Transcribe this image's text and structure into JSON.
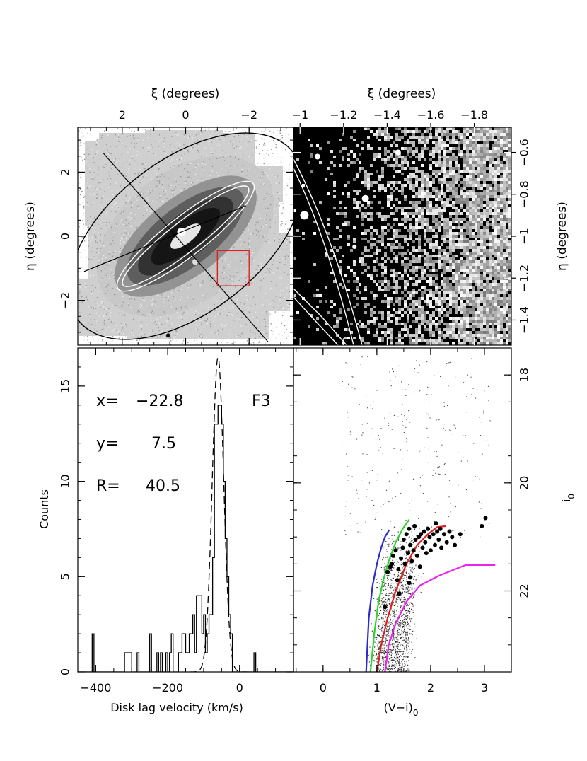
{
  "chart_data": [
    {
      "panel": "sky-map",
      "type": "heatmap",
      "title": "",
      "top_xlabel": "ξ (degrees)",
      "ylabel": "η (degrees)",
      "xlim": [
        3.4,
        -3.4
      ],
      "ylim": [
        -3.4,
        3.4
      ],
      "xticks": [
        2,
        0,
        -2
      ],
      "yticks": [
        2,
        0,
        -2
      ],
      "ellipses": [
        {
          "name": "outer-disk-ellipse",
          "cx": 0,
          "cy": 0,
          "a": 4.3,
          "b": 2.4,
          "angle_deg": -38,
          "color": "#000000"
        },
        {
          "name": "inner-disk-ellipse-outer",
          "cx": 0,
          "cy": 0,
          "a": 2.7,
          "b": 0.62,
          "angle_deg": -38,
          "color": "#ffffff"
        },
        {
          "name": "inner-disk-ellipse-inner",
          "cx": 0,
          "cy": 0,
          "a": 2.5,
          "b": 0.48,
          "angle_deg": -38,
          "color": "#ffffff"
        }
      ],
      "axis_lines": [
        {
          "name": "major-axis-line",
          "x1": 2.6,
          "y1": 2.6,
          "x2": -2.6,
          "y2": -3.3
        },
        {
          "name": "minor-axis-line",
          "x1": 3.2,
          "y1": -1.1,
          "x2": -1.9,
          "y2": 0.95
        }
      ],
      "field_box": {
        "name": "field-f3-box",
        "xmin": -2.0,
        "xmax": -1.0,
        "ymin": -1.55,
        "ymax": -0.45,
        "color": "#e02020"
      }
    },
    {
      "panel": "field-zoom",
      "type": "heatmap",
      "top_xlabel": "ξ (degrees)",
      "right_ylabel": "η (degrees)",
      "xlim": [
        -0.97,
        -1.97
      ],
      "ylim": [
        -1.52,
        -0.48
      ],
      "xticks": [
        -1,
        -1.2,
        -1.4,
        -1.6,
        -1.8
      ],
      "yticks": [
        -0.6,
        -0.8,
        -1,
        -1.2,
        -1.4
      ]
    },
    {
      "panel": "velocity-histogram",
      "type": "bar",
      "xlabel": "Disk lag velocity (km/s)",
      "ylabel": "Counts",
      "xlim": [
        -450,
        150
      ],
      "ylim": [
        0,
        17
      ],
      "xticks": [
        -400,
        -200,
        0
      ],
      "yticks": [
        0,
        5,
        10,
        15
      ],
      "bin_width": 5,
      "bins": [
        [
          -410,
          2
        ],
        [
          -405,
          0
        ],
        [
          -320,
          1
        ],
        [
          -300,
          0
        ],
        [
          -285,
          1
        ],
        [
          -280,
          0
        ],
        [
          -250,
          2
        ],
        [
          -245,
          0
        ],
        [
          -230,
          1
        ],
        [
          -225,
          0
        ],
        [
          -220,
          1
        ],
        [
          -215,
          0
        ],
        [
          -205,
          1
        ],
        [
          -200,
          0
        ],
        [
          -195,
          1
        ],
        [
          -190,
          2
        ],
        [
          -185,
          0
        ],
        [
          -170,
          1
        ],
        [
          -160,
          2
        ],
        [
          -150,
          1
        ],
        [
          -140,
          2
        ],
        [
          -130,
          3
        ],
        [
          -125,
          1
        ],
        [
          -120,
          4
        ],
        [
          -110,
          4
        ],
        [
          -105,
          2
        ],
        [
          -100,
          3
        ],
        [
          -95,
          1
        ],
        [
          -90,
          2
        ],
        [
          -85,
          3
        ],
        [
          -80,
          3
        ],
        [
          -75,
          6
        ],
        [
          -70,
          13
        ],
        [
          -65,
          13
        ],
        [
          -60,
          14
        ],
        [
          -55,
          14
        ],
        [
          -50,
          13
        ],
        [
          -45,
          10
        ],
        [
          -40,
          7
        ],
        [
          -35,
          5
        ],
        [
          -30,
          3
        ],
        [
          -25,
          2
        ],
        [
          -20,
          0
        ],
        [
          -15,
          0
        ],
        [
          -10,
          0
        ],
        [
          40,
          1
        ],
        [
          45,
          0
        ]
      ],
      "gaussian_fit": {
        "mean": -60,
        "sigma": 16,
        "amplitude": 16.5,
        "style": "dashed"
      },
      "annotations": {
        "x_label": "x=",
        "x_value": "−22.8",
        "y_label": "y=",
        "y_value": "7.5",
        "r_label": "R=",
        "r_value": "40.5",
        "field_label": "F3"
      }
    },
    {
      "panel": "cmd",
      "type": "scatter",
      "xlabel": "(V−i)",
      "xlabel_subscript": "0",
      "right_ylabel": "i",
      "right_ylabel_subscript": "0",
      "xlim": [
        -0.55,
        3.5
      ],
      "ylim": [
        23.5,
        17.5
      ],
      "xticks": [
        0,
        1,
        2,
        3
      ],
      "yticks": [
        18,
        20,
        22
      ],
      "isochrones": [
        {
          "name": "isochrone-blue",
          "color": "#2c2ccc",
          "points": [
            [
              0.8,
              23.5
            ],
            [
              0.85,
              22.5
            ],
            [
              0.92,
              21.9
            ],
            [
              1.0,
              21.5
            ],
            [
              1.08,
              21.2
            ],
            [
              1.15,
              21.0
            ],
            [
              1.23,
              20.87
            ]
          ]
        },
        {
          "name": "isochrone-green",
          "color": "#2fd42f",
          "points": [
            [
              0.88,
              23.5
            ],
            [
              0.95,
              22.8
            ],
            [
              1.03,
              22.2
            ],
            [
              1.12,
              21.8
            ],
            [
              1.22,
              21.45
            ],
            [
              1.35,
              21.1
            ],
            [
              1.48,
              20.85
            ],
            [
              1.6,
              20.68
            ]
          ]
        },
        {
          "name": "isochrone-red",
          "color": "#e02020",
          "points": [
            [
              1.0,
              23.5
            ],
            [
              1.08,
              23.0
            ],
            [
              1.2,
              22.5
            ],
            [
              1.35,
              22.0
            ],
            [
              1.55,
              21.5
            ],
            [
              1.75,
              21.15
            ],
            [
              1.95,
              20.95
            ],
            [
              2.12,
              20.82
            ],
            [
              2.28,
              20.8
            ]
          ]
        },
        {
          "name": "isochrone-magenta",
          "color": "#ee22ee",
          "points": [
            [
              1.15,
              23.5
            ],
            [
              1.22,
              23.0
            ],
            [
              1.35,
              22.6
            ],
            [
              1.55,
              22.2
            ],
            [
              1.8,
              21.9
            ],
            [
              2.15,
              21.72
            ],
            [
              2.65,
              21.52
            ],
            [
              3.2,
              21.52
            ]
          ]
        }
      ],
      "rgb_stars": [
        [
          1.15,
          22.3
        ],
        [
          1.2,
          21.65
        ],
        [
          1.25,
          21.55
        ],
        [
          1.28,
          21.5
        ],
        [
          1.3,
          21.35
        ],
        [
          1.35,
          21.25
        ],
        [
          1.38,
          21.8
        ],
        [
          1.4,
          21.6
        ],
        [
          1.45,
          21.4
        ],
        [
          1.48,
          21.2
        ],
        [
          1.5,
          21.05
        ],
        [
          1.52,
          21.5
        ],
        [
          1.55,
          20.95
        ],
        [
          1.58,
          21.3
        ],
        [
          1.6,
          20.85
        ],
        [
          1.62,
          21.15
        ],
        [
          1.65,
          21.45
        ],
        [
          1.68,
          21.25
        ],
        [
          1.7,
          20.8
        ],
        [
          1.72,
          21.05
        ],
        [
          1.75,
          21.35
        ],
        [
          1.78,
          21.0
        ],
        [
          1.8,
          21.55
        ],
        [
          1.82,
          20.95
        ],
        [
          1.85,
          21.2
        ],
        [
          1.88,
          20.9
        ],
        [
          1.9,
          21.1
        ],
        [
          1.92,
          21.3
        ],
        [
          1.95,
          20.85
        ],
        [
          1.98,
          21.0
        ],
        [
          2.0,
          21.25
        ],
        [
          2.05,
          20.95
        ],
        [
          2.08,
          21.15
        ],
        [
          2.1,
          20.75
        ],
        [
          2.12,
          20.9
        ],
        [
          2.15,
          21.05
        ],
        [
          2.18,
          20.85
        ],
        [
          2.2,
          21.2
        ],
        [
          2.25,
          20.95
        ],
        [
          2.3,
          21.1
        ],
        [
          2.35,
          20.9
        ],
        [
          2.4,
          21.0
        ],
        [
          2.45,
          21.15
        ],
        [
          2.55,
          20.95
        ],
        [
          2.95,
          20.8
        ],
        [
          3.02,
          20.65
        ],
        [
          1.42,
          22.05
        ],
        [
          1.62,
          21.75
        ],
        [
          1.6,
          21.85
        ]
      ]
    }
  ]
}
